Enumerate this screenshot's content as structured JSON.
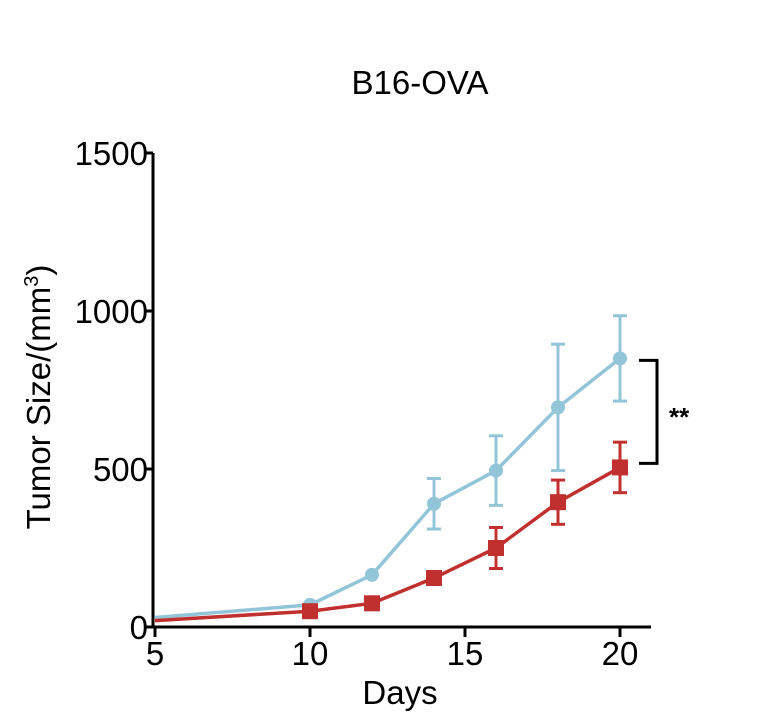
{
  "chart_data": {
    "type": "line",
    "title": "B16-OVA",
    "xlabel": "Days",
    "ylabel_main": "Tumor Size/(mm",
    "ylabel_sup": "3",
    "ylabel_close": ")",
    "xlim": [
      5,
      21
    ],
    "ylim": [
      0,
      1500
    ],
    "xticks": [
      5,
      10,
      15,
      20
    ],
    "yticks": [
      0,
      500,
      1000,
      1500
    ],
    "grid": false,
    "series": [
      {
        "name": "blue",
        "color": "#93C5D8",
        "marker": "circle",
        "x": [
          5,
          10,
          12,
          14,
          16,
          18,
          20
        ],
        "y": [
          30,
          70,
          165,
          390,
          495,
          695,
          850
        ],
        "err": [
          0,
          0,
          0,
          80,
          110,
          200,
          135
        ]
      },
      {
        "name": "red",
        "color": "#C0302E",
        "marker": "square",
        "x": [
          5,
          10,
          12,
          14,
          16,
          18,
          20
        ],
        "y": [
          20,
          50,
          75,
          155,
          250,
          395,
          505
        ],
        "err": [
          0,
          0,
          0,
          0,
          65,
          70,
          80
        ]
      }
    ],
    "annotation": {
      "text": "**",
      "x": 20,
      "y_top": 850,
      "y_bottom": 505
    }
  }
}
